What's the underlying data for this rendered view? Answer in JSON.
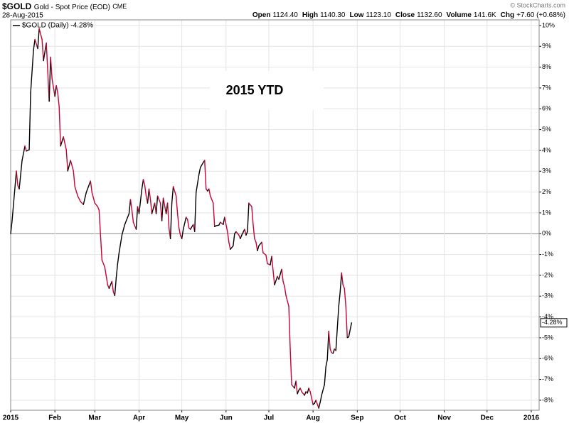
{
  "chart_data": {
    "type": "line",
    "title": "$GOLD",
    "subtitle": "Gold - Spot Price (EOD)",
    "exchange": "CME",
    "date": "28-Aug-2015",
    "quote": [
      {
        "label": "Open",
        "value": "1124.40"
      },
      {
        "label": "High",
        "value": "1140.30"
      },
      {
        "label": "Low",
        "value": "1123.10"
      },
      {
        "label": "Close",
        "value": "1132.60"
      },
      {
        "label": "Volume",
        "value": "141.6K"
      },
      {
        "label": "Chg",
        "value": "+7.60 (+0.68%)"
      }
    ],
    "credit": "© StockCharts.com",
    "annotation": "2015 YTD",
    "up_color": "#000000",
    "down_color": "#cc0033",
    "grid": true,
    "legend": "top-left",
    "xlim": [
      0,
      370.5
    ],
    "ylim": [
      -8.48,
      10.27
    ],
    "xticks": [
      {
        "value": 0,
        "label": "2015"
      },
      {
        "value": 31,
        "label": "Feb"
      },
      {
        "value": 59,
        "label": "Mar"
      },
      {
        "value": 90,
        "label": "Apr"
      },
      {
        "value": 120,
        "label": "May"
      },
      {
        "value": 151,
        "label": "Jun"
      },
      {
        "value": 181,
        "label": "Jul"
      },
      {
        "value": 212,
        "label": "Aug"
      },
      {
        "value": 243,
        "label": "Sep"
      },
      {
        "value": 273,
        "label": "Oct"
      },
      {
        "value": 304,
        "label": "Nov"
      },
      {
        "value": 334,
        "label": "Dec"
      },
      {
        "value": 365,
        "label": "2016"
      }
    ],
    "yticks": [
      {
        "value": 10,
        "label": "10%"
      },
      {
        "value": 9,
        "label": "9%"
      },
      {
        "value": 8,
        "label": "8%"
      },
      {
        "value": 7,
        "label": "7%"
      },
      {
        "value": 6,
        "label": "6%"
      },
      {
        "value": 5,
        "label": "5%"
      },
      {
        "value": 4,
        "label": "4%"
      },
      {
        "value": 3,
        "label": "3%"
      },
      {
        "value": 2,
        "label": "2%"
      },
      {
        "value": 1,
        "label": "1%"
      },
      {
        "value": 0,
        "label": "0%"
      },
      {
        "value": -1,
        "label": "-1%"
      },
      {
        "value": -2,
        "label": "-2%"
      },
      {
        "value": -3,
        "label": "-3%"
      },
      {
        "value": -4,
        "label": "-4%"
      },
      {
        "value": -5,
        "label": "-5%"
      },
      {
        "value": -6,
        "label": "-6%"
      },
      {
        "value": -7,
        "label": "-7%"
      },
      {
        "value": -8,
        "label": "-8%"
      }
    ],
    "x": [
      0,
      1,
      4,
      5,
      6,
      8,
      10,
      11,
      13,
      14,
      16,
      17,
      19,
      20,
      22,
      23,
      25,
      26,
      27,
      28,
      29,
      31,
      32,
      33,
      34,
      35,
      37,
      39,
      40,
      42,
      44,
      45,
      47,
      49,
      51,
      53,
      56,
      57,
      59,
      61,
      62,
      64,
      66,
      68,
      69,
      71,
      72,
      73,
      74,
      75,
      76,
      78,
      80,
      82,
      83,
      84,
      85,
      86,
      88,
      89,
      90,
      92,
      93,
      94,
      95,
      96,
      97,
      98,
      99,
      101,
      102,
      103,
      105,
      106,
      107,
      109,
      110,
      111,
      112,
      113,
      114,
      116,
      117,
      118,
      119,
      120,
      121,
      123,
      124,
      125,
      126,
      128,
      129,
      130,
      132,
      133,
      135,
      136,
      137,
      138,
      139,
      140,
      142,
      143,
      144,
      146,
      147,
      149,
      150,
      151,
      152,
      153,
      154,
      156,
      157,
      158,
      160,
      161,
      162,
      164,
      165,
      166,
      167,
      169,
      170,
      171,
      172,
      173,
      174,
      176,
      177,
      179,
      180,
      182,
      183,
      184,
      185,
      187,
      188,
      190,
      191,
      192,
      193,
      195,
      196,
      197,
      199,
      200,
      201,
      202,
      203,
      204,
      206,
      207,
      208,
      209,
      210,
      212,
      213,
      214,
      216,
      217,
      218,
      220,
      221,
      222,
      223,
      224,
      225,
      226,
      227,
      228,
      230,
      231,
      232,
      233,
      234,
      235,
      236,
      237,
      239
    ],
    "series": [
      {
        "name": "$GOLD (Daily) -4.28%",
        "last_value_label": "-4.28%",
        "values": [
          0.0,
          0.62,
          3.01,
          2.32,
          2.15,
          3.52,
          4.21,
          3.97,
          4.03,
          6.77,
          8.82,
          9.33,
          8.89,
          9.85,
          9.33,
          8.31,
          9.16,
          7.79,
          6.36,
          8.48,
          7.45,
          6.6,
          7.11,
          6.77,
          6.09,
          4.21,
          4.65,
          4.03,
          3.01,
          3.52,
          3.01,
          2.26,
          1.81,
          1.54,
          1.4,
          1.98,
          2.53,
          1.98,
          1.47,
          1.3,
          1.13,
          -1.26,
          -1.61,
          -2.46,
          -2.63,
          -2.29,
          -2.8,
          -2.97,
          -2.12,
          -1.44,
          -0.92,
          -0.07,
          0.44,
          0.79,
          0.96,
          1.64,
          1.13,
          0.55,
          0.21,
          1.3,
          0.96,
          2.15,
          2.6,
          2.32,
          1.81,
          1.47,
          2.15,
          1.64,
          0.96,
          1.47,
          0.96,
          1.81,
          1.47,
          0.62,
          1.71,
          0.96,
          1.47,
          0.27,
          -0.24,
          1.47,
          2.26,
          1.81,
          0.96,
          0.27,
          -0.07,
          -0.24,
          0.21,
          0.79,
          0.68,
          0.27,
          0.21,
          0.44,
          0.1,
          1.98,
          2.84,
          3.18,
          3.42,
          3.52,
          2.15,
          2.05,
          2.15,
          1.81,
          1.47,
          0.34,
          0.38,
          0.41,
          0.55,
          0.44,
          0.79,
          0.44,
          0.1,
          -0.41,
          -0.75,
          -0.58,
          0.0,
          0.1,
          -0.07,
          -0.24,
          -0.07,
          0.21,
          -0.07,
          0.1,
          1.47,
          1.3,
          0.44,
          -0.24,
          -0.41,
          -0.82,
          -0.58,
          -0.41,
          -0.92,
          -1.03,
          -1.44,
          -1.5,
          -1.09,
          -1.78,
          -2.46,
          -2.05,
          -2.19,
          -1.71,
          -2.29,
          -2.53,
          -2.97,
          -3.49,
          -5.54,
          -7.25,
          -7.42,
          -7.08,
          -7.69,
          -7.52,
          -7.42,
          -7.59,
          -7.76,
          -7.59,
          -7.66,
          -7.42,
          -7.59,
          -8.21,
          -8.15,
          -8.0,
          -8.38,
          -8.1,
          -7.76,
          -7.25,
          -6.39,
          -6.05,
          -4.68,
          -5.54,
          -5.71,
          -5.75,
          -5.54,
          -5.61,
          -3.49,
          -2.8,
          -1.88,
          -2.46,
          -2.63,
          -3.49,
          -4.99,
          -4.96,
          -4.28
        ]
      }
    ]
  }
}
